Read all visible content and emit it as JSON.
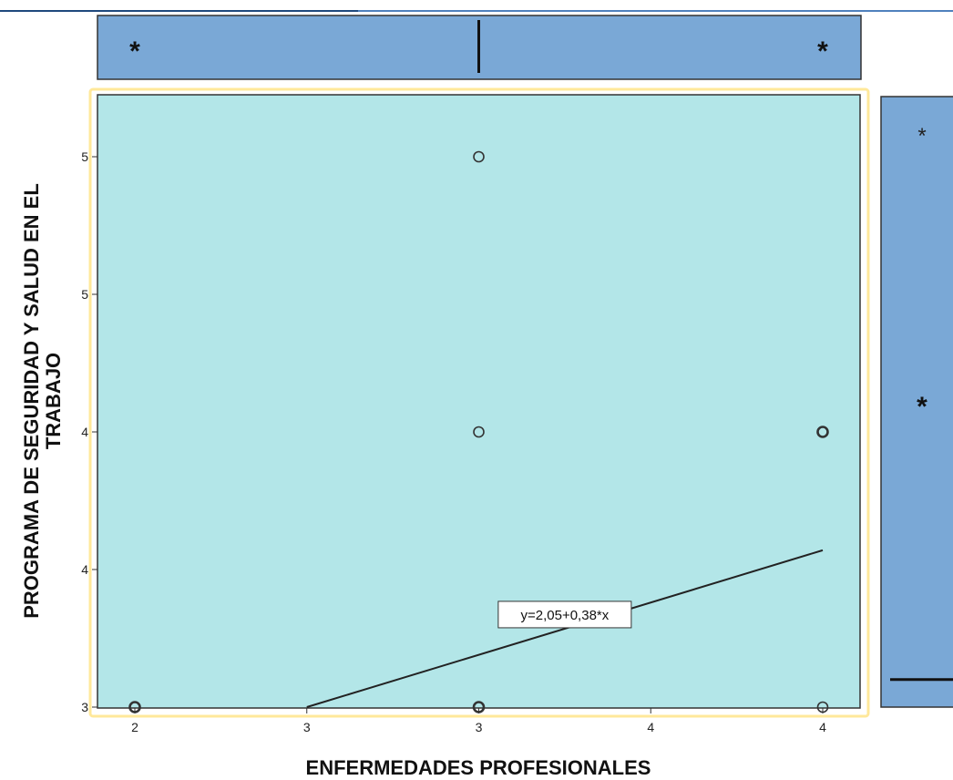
{
  "chart_data": {
    "type": "scatter",
    "title": "",
    "xlabel": "ENFERMEDADES PROFESIONALES",
    "ylabel_line1": "PROGRAMA DE SEGURIDAD Y SALUD EN EL",
    "ylabel_line2": "TRABAJO",
    "x_range": [
      2.0,
      4.2
    ],
    "y_range": [
      3.0,
      5.2
    ],
    "x_ticks": [
      {
        "value": 2.0,
        "label": "2"
      },
      {
        "value": 2.5,
        "label": "3"
      },
      {
        "value": 3.0,
        "label": "3"
      },
      {
        "value": 3.5,
        "label": "4"
      },
      {
        "value": 4.0,
        "label": "4"
      }
    ],
    "y_ticks": [
      {
        "value": 3.0,
        "label": "3"
      },
      {
        "value": 3.5,
        "label": "4"
      },
      {
        "value": 4.0,
        "label": "4"
      },
      {
        "value": 4.5,
        "label": "5"
      },
      {
        "value": 5.0,
        "label": "5"
      }
    ],
    "points": [
      {
        "x": 2.0,
        "y": 3.0,
        "multi": true
      },
      {
        "x": 3.0,
        "y": 3.0,
        "multi": true
      },
      {
        "x": 4.0,
        "y": 3.0,
        "multi": false
      },
      {
        "x": 3.0,
        "y": 4.0,
        "multi": false
      },
      {
        "x": 4.0,
        "y": 4.0,
        "multi": true
      },
      {
        "x": 3.0,
        "y": 5.0,
        "multi": false
      }
    ],
    "fit_line": {
      "equation": "y=2,05+0,38*x",
      "x_start": 2.5,
      "x_end": 4.0,
      "intercept": 2.05,
      "slope": 0.38,
      "label_x": 3.25
    },
    "top_boxplot": {
      "outlier_min": 2.0,
      "outlier_max": 4.0,
      "median": 3.0,
      "outlier_symbol": "*"
    },
    "right_boxplot": {
      "outlier_upper": 5.0,
      "outlier_mid": 4.0,
      "median": 3.1,
      "outlier_symbol": "*"
    },
    "colors": {
      "plot_bg": "#b3e6e8",
      "box_fill": "#7aa8d6",
      "frame_highlight": "#ffe89a",
      "line": "#222222"
    },
    "grid": false
  }
}
